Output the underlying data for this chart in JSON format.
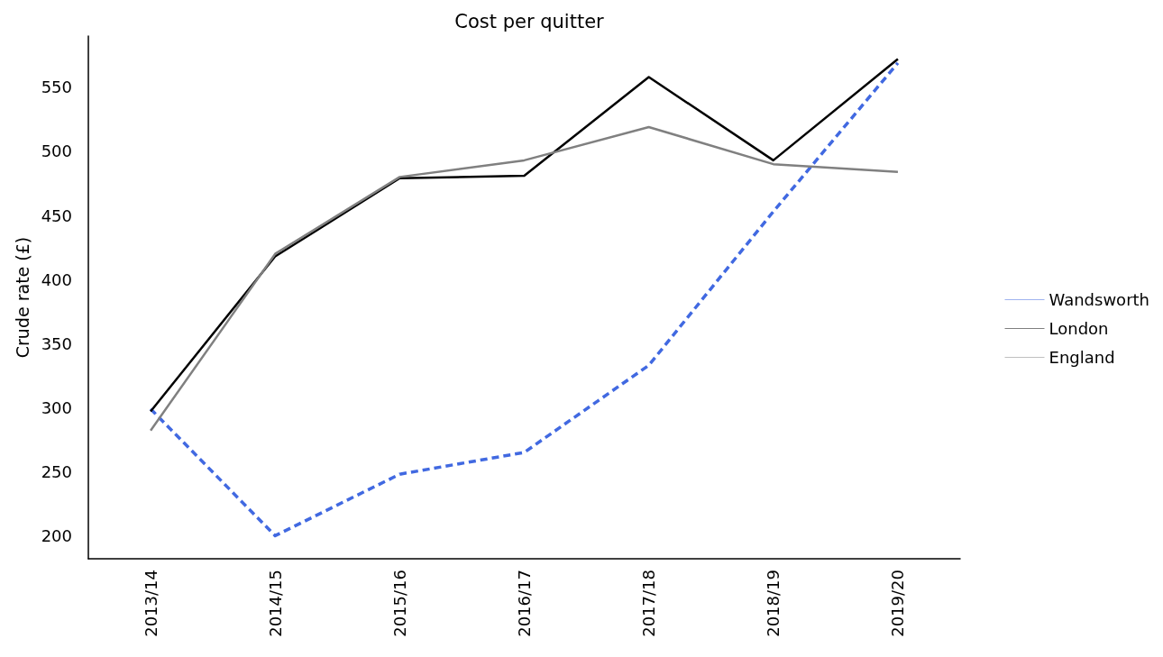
{
  "chart_data": {
    "type": "line",
    "title": "Cost per quitter",
    "ylabel": "Crude rate (£)",
    "categories": [
      "2013/14",
      "2014/15",
      "2015/16",
      "2016/17",
      "2017/18",
      "2018/19",
      "2019/20"
    ],
    "series": [
      {
        "name": "Wandsworth",
        "color": "#4169e1",
        "line_style": "dashed",
        "values": [
          299,
          200,
          248,
          265,
          333,
          453,
          569
        ]
      },
      {
        "name": "London",
        "color": "#000000",
        "line_style": "solid",
        "values": [
          297,
          418,
          479,
          481,
          558,
          493,
          572
        ]
      },
      {
        "name": "England",
        "color": "#808080",
        "line_style": "solid",
        "values": [
          282,
          420,
          480,
          493,
          519,
          490,
          484
        ]
      }
    ],
    "ylim": [
      182,
      590
    ],
    "yticks": [
      200,
      250,
      300,
      350,
      400,
      450,
      500,
      550
    ],
    "grid": false,
    "legend": "right",
    "marker": "none"
  }
}
